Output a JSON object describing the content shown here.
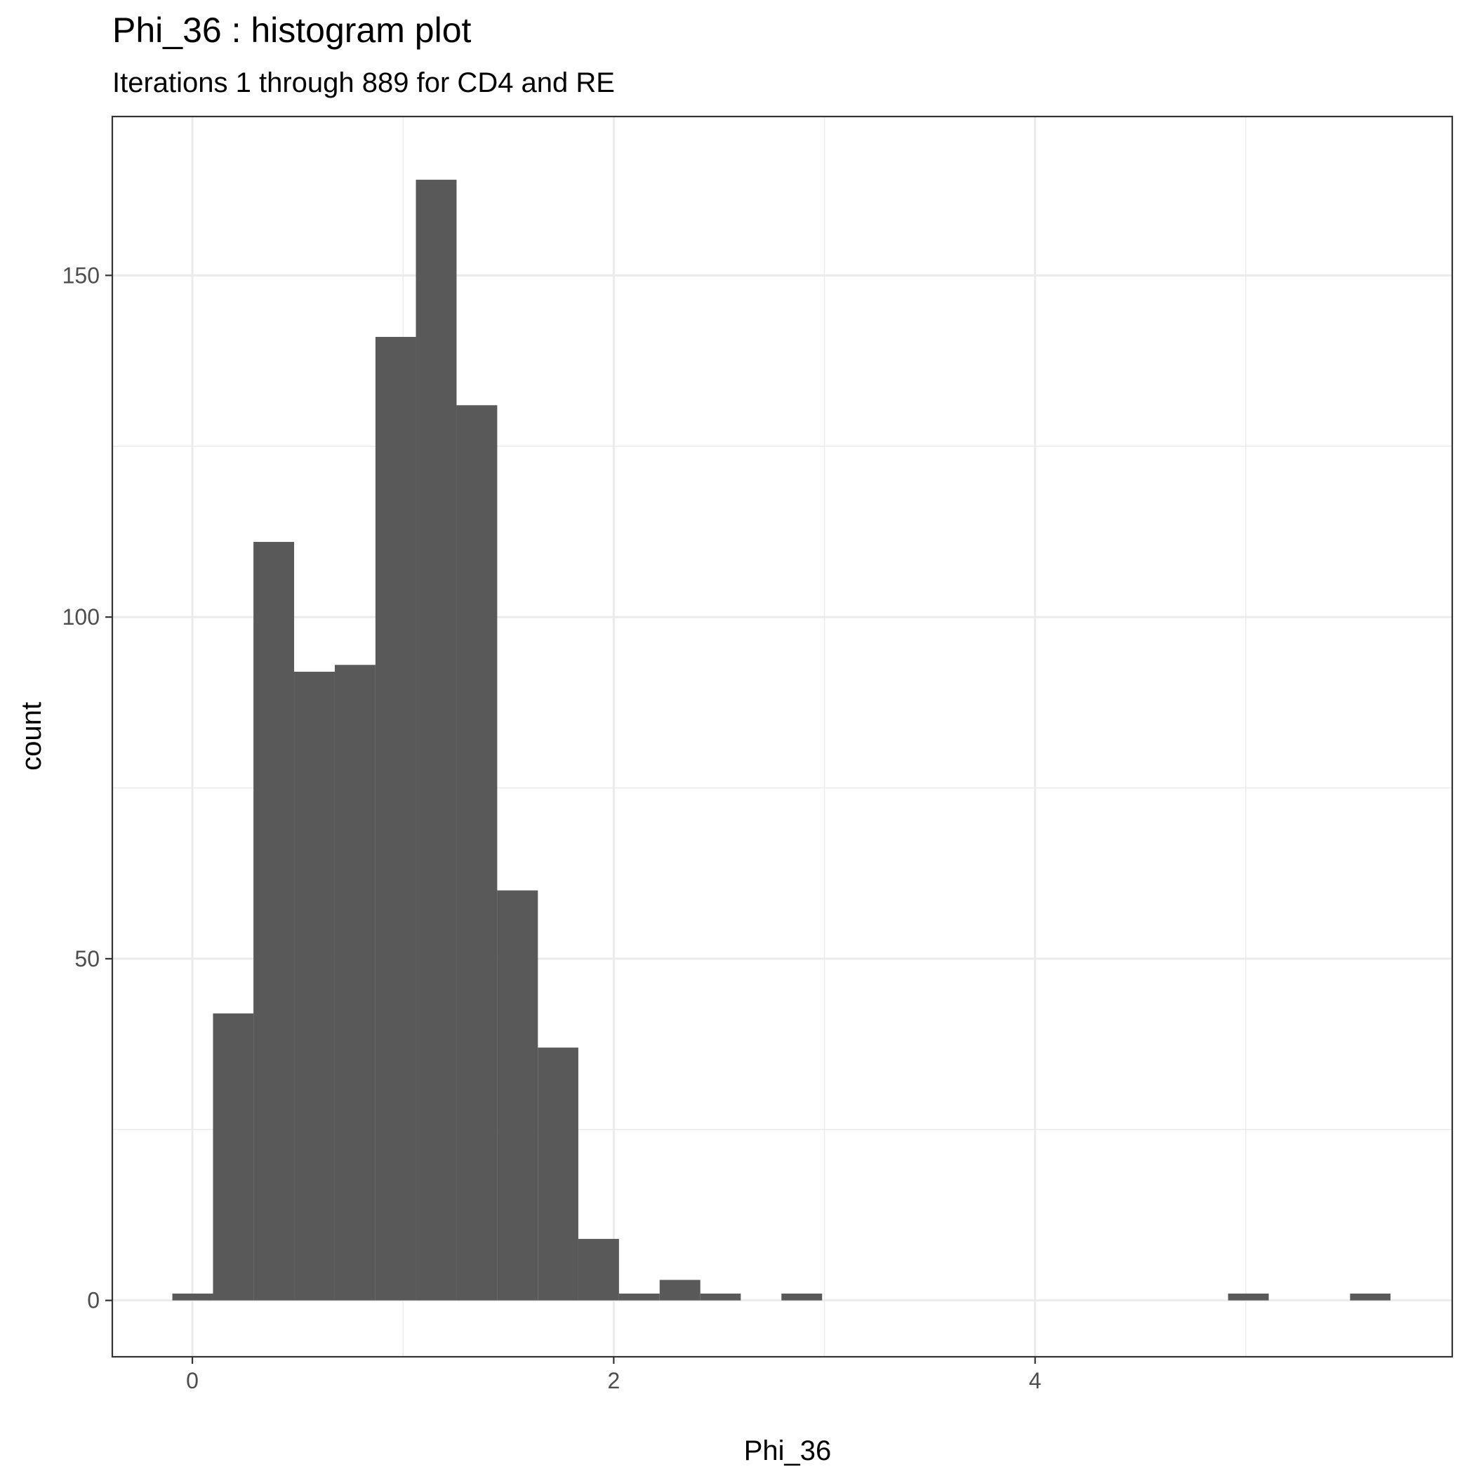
{
  "chart_data": {
    "type": "histogram",
    "title": "Phi_36 : histogram plot",
    "subtitle": "Iterations 1 through 889 for CD4 and RE",
    "xlabel": "Phi_36",
    "ylabel": "count",
    "xlim": [
      -0.38,
      5.98
    ],
    "ylim": [
      -8.25,
      173.25
    ],
    "x_ticks": [
      0,
      2,
      4
    ],
    "x_tick_labels": [
      "0",
      "2",
      "4"
    ],
    "x_minor_ticks": [
      1,
      3,
      5
    ],
    "y_ticks": [
      0,
      50,
      100,
      150
    ],
    "y_tick_labels": [
      "0",
      "50",
      "100",
      "150"
    ],
    "y_minor_ticks": [
      25,
      75,
      125
    ],
    "grid": true,
    "bar_color": "#595959",
    "bins": [
      {
        "x0": -0.095,
        "x1": 0.098,
        "count": 1
      },
      {
        "x0": 0.098,
        "x1": 0.29,
        "count": 42
      },
      {
        "x0": 0.29,
        "x1": 0.483,
        "count": 111
      },
      {
        "x0": 0.483,
        "x1": 0.676,
        "count": 92
      },
      {
        "x0": 0.676,
        "x1": 0.869,
        "count": 93
      },
      {
        "x0": 0.869,
        "x1": 1.061,
        "count": 141
      },
      {
        "x0": 1.061,
        "x1": 1.254,
        "count": 164
      },
      {
        "x0": 1.254,
        "x1": 1.447,
        "count": 131
      },
      {
        "x0": 1.447,
        "x1": 1.64,
        "count": 60
      },
      {
        "x0": 1.64,
        "x1": 1.832,
        "count": 37
      },
      {
        "x0": 1.832,
        "x1": 2.025,
        "count": 9
      },
      {
        "x0": 2.025,
        "x1": 2.218,
        "count": 1
      },
      {
        "x0": 2.218,
        "x1": 2.411,
        "count": 3
      },
      {
        "x0": 2.411,
        "x1": 2.603,
        "count": 1
      },
      {
        "x0": 2.603,
        "x1": 2.796,
        "count": 0
      },
      {
        "x0": 2.796,
        "x1": 2.989,
        "count": 1
      },
      {
        "x0": 2.989,
        "x1": 3.182,
        "count": 0
      },
      {
        "x0": 3.182,
        "x1": 3.374,
        "count": 0
      },
      {
        "x0": 3.374,
        "x1": 3.567,
        "count": 0
      },
      {
        "x0": 3.567,
        "x1": 3.76,
        "count": 0
      },
      {
        "x0": 3.76,
        "x1": 3.953,
        "count": 0
      },
      {
        "x0": 3.953,
        "x1": 4.145,
        "count": 0
      },
      {
        "x0": 4.145,
        "x1": 4.338,
        "count": 0
      },
      {
        "x0": 4.338,
        "x1": 4.531,
        "count": 0
      },
      {
        "x0": 4.531,
        "x1": 4.724,
        "count": 0
      },
      {
        "x0": 4.724,
        "x1": 4.916,
        "count": 0
      },
      {
        "x0": 4.916,
        "x1": 5.109,
        "count": 1
      },
      {
        "x0": 5.109,
        "x1": 5.302,
        "count": 0
      },
      {
        "x0": 5.302,
        "x1": 5.495,
        "count": 0
      },
      {
        "x0": 5.495,
        "x1": 5.687,
        "count": 1
      }
    ]
  }
}
